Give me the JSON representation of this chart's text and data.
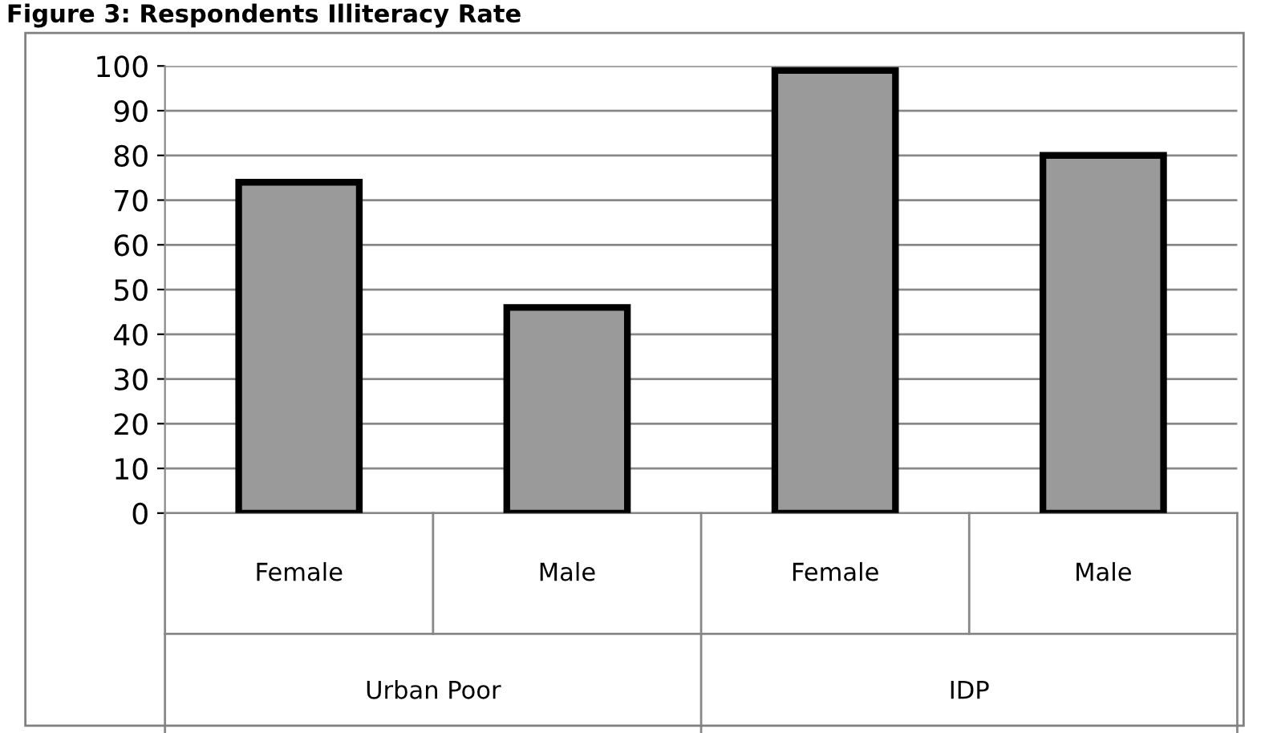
{
  "chart_data": {
    "type": "bar",
    "title": "Figure 3: Respondents Illiteracy Rate",
    "categories": [
      "Female",
      "Male",
      "Female",
      "Male"
    ],
    "values": [
      74,
      46,
      99,
      80
    ],
    "color": "#9a9a9a",
    "annotations": [
      "Urban Poor",
      "IDP"
    ],
    "ylim": [
      0,
      100
    ],
    "yticks": [
      0,
      10,
      20,
      30,
      40,
      50,
      60,
      70,
      80,
      90,
      100
    ],
    "grid": "y"
  }
}
